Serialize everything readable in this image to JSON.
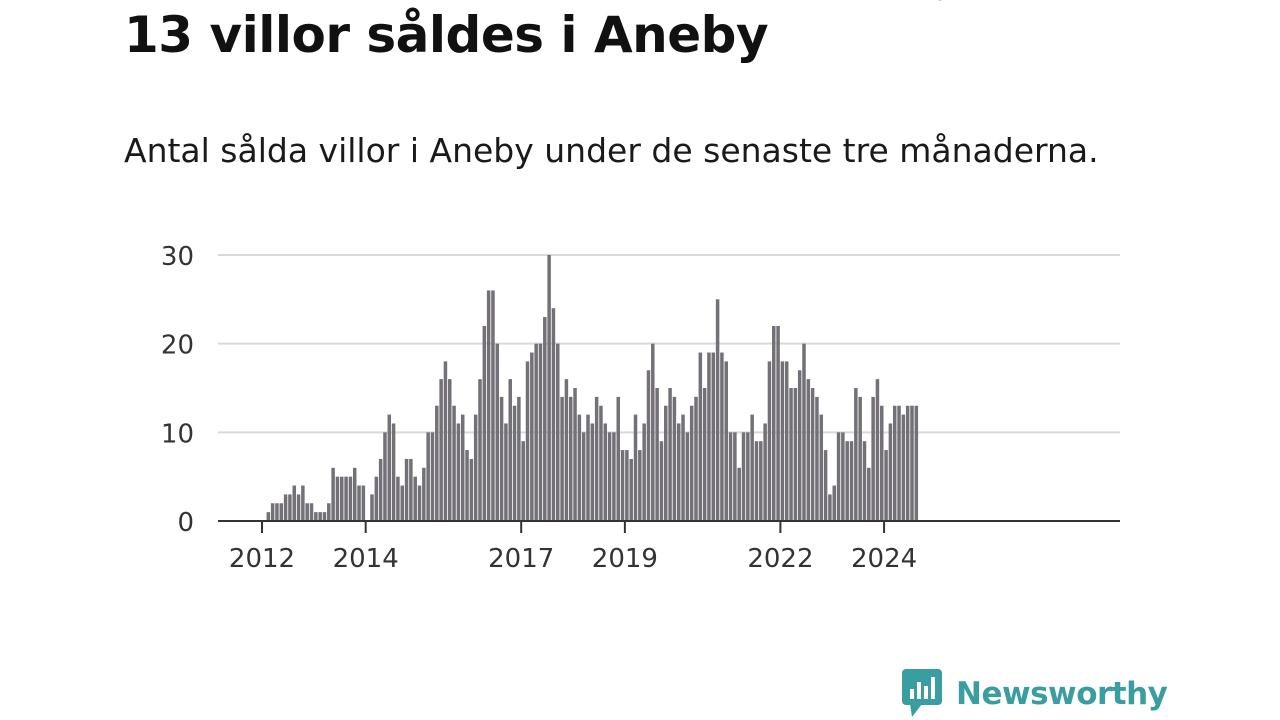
{
  "header": {
    "title": "13 villor såldes i Aneby",
    "subtitle": "Antal sålda villor i Aneby under de senaste tre månaderna."
  },
  "brand": {
    "name": "Newsworthy"
  },
  "colors": {
    "bar": "#737177",
    "highlight": "#16a3a6",
    "grid": "#d9d9d9",
    "axis": "#333333",
    "brand": "#3a9ea0"
  },
  "chart_data": {
    "type": "bar",
    "unit": "month",
    "start": "2012-01",
    "ylim": [
      0,
      30
    ],
    "yticks": [
      0,
      10,
      20,
      30
    ],
    "xticks": [
      {
        "label": "2012",
        "index": 0
      },
      {
        "label": "2014",
        "index": 24
      },
      {
        "label": "2017",
        "index": 60
      },
      {
        "label": "2019",
        "index": 84
      },
      {
        "label": "2022",
        "index": 120
      },
      {
        "label": "2024",
        "index": 144
      }
    ],
    "values": [
      0,
      1,
      2,
      2,
      2,
      3,
      3,
      4,
      3,
      4,
      2,
      2,
      1,
      1,
      1,
      2,
      6,
      5,
      5,
      5,
      5,
      6,
      4,
      4,
      0,
      3,
      5,
      7,
      10,
      12,
      11,
      5,
      4,
      7,
      7,
      5,
      4,
      6,
      10,
      10,
      13,
      16,
      18,
      16,
      13,
      11,
      12,
      8,
      7,
      12,
      16,
      22,
      26,
      26,
      20,
      14,
      11,
      16,
      13,
      14,
      9,
      18,
      19,
      20,
      20,
      23,
      30,
      24,
      20,
      14,
      16,
      14,
      15,
      12,
      10,
      12,
      11,
      14,
      13,
      11,
      10,
      10,
      14,
      8,
      8,
      7,
      12,
      8,
      11,
      17,
      20,
      15,
      9,
      13,
      15,
      14,
      11,
      12,
      10,
      13,
      14,
      19,
      15,
      19,
      19,
      25,
      19,
      18,
      10,
      10,
      6,
      10,
      10,
      12,
      9,
      9,
      11,
      18,
      22,
      22,
      18,
      18,
      15,
      15,
      17,
      20,
      16,
      15,
      14,
      12,
      8,
      3,
      4,
      10,
      10,
      9,
      9,
      15,
      14,
      9,
      6,
      14,
      16,
      13,
      8,
      11,
      13,
      13,
      12,
      13,
      13,
      13
    ],
    "highlight_index": 155,
    "annotation": "13"
  }
}
